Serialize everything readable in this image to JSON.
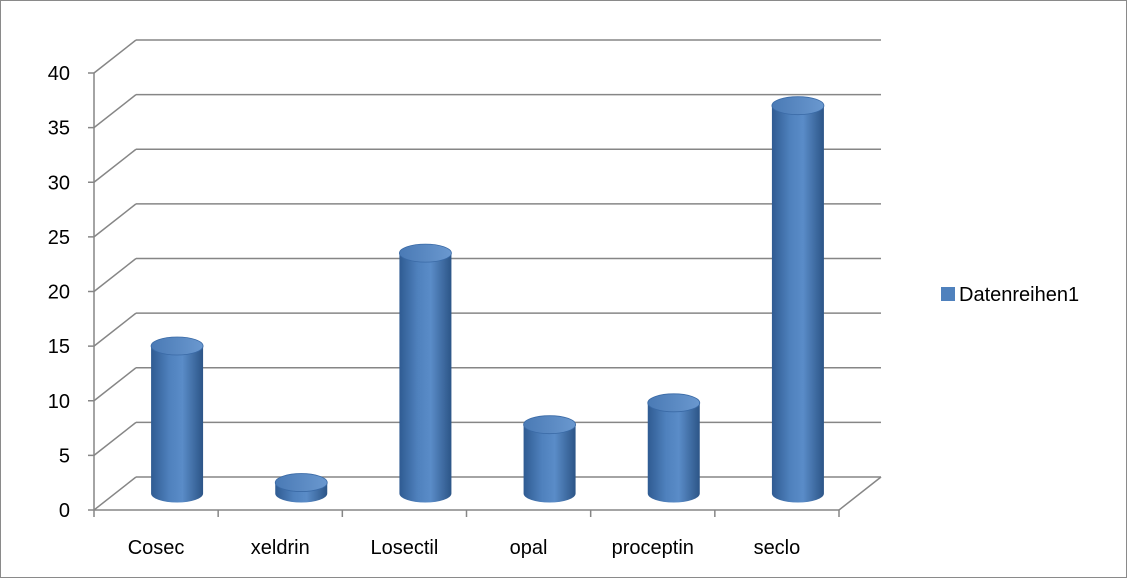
{
  "chart_data": {
    "type": "bar",
    "style": "3d-cylinder",
    "categories": [
      "Cosec",
      "xeldrin",
      "Losectil",
      "opal",
      "proceptin",
      "seclo"
    ],
    "series": [
      {
        "name": "Datenreihen1",
        "values": [
          13.5,
          1,
          22,
          6.3,
          8.3,
          35.5
        ],
        "color": "#4f81bd"
      }
    ],
    "ylim": [
      0,
      40
    ],
    "yticks": [
      0,
      5,
      10,
      15,
      20,
      25,
      30,
      35,
      40
    ],
    "title": "",
    "xlabel": "",
    "ylabel": "",
    "grid": true,
    "legend_position": "right"
  }
}
